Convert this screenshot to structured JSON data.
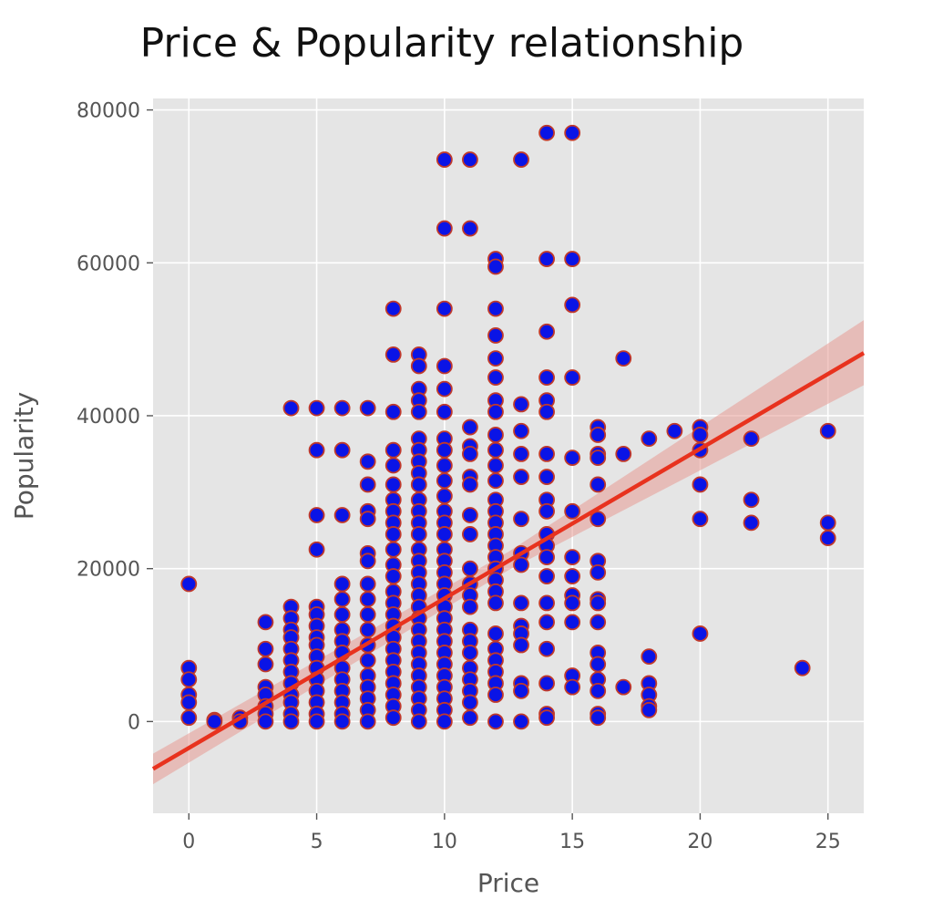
{
  "chart_data": {
    "type": "scatter",
    "title": "Price & Popularity relationship",
    "xlabel": "Price",
    "ylabel": "Popularity",
    "xlim": [
      -1.4,
      26.4
    ],
    "ylim": [
      -12000,
      81500
    ],
    "xticks": [
      0,
      5,
      10,
      15,
      20,
      25
    ],
    "yticks": [
      0,
      20000,
      40000,
      60000,
      80000
    ],
    "grid": true,
    "colors": {
      "background": "#e5e5e5",
      "grid": "#ffffff",
      "point_fill": "#0a14e6",
      "point_edge": "#c0392b",
      "regression_line": "#e8321e",
      "confidence_band": "#e89a94"
    },
    "regression": {
      "x": [
        -1.4,
        26.4
      ],
      "y": [
        -6200,
        48200
      ],
      "ci_at_end": [
        44000,
        52500
      ],
      "ci_at_start": [
        -8200,
        -4200
      ]
    },
    "points": [
      [
        0,
        18000
      ],
      [
        0,
        7000
      ],
      [
        0,
        5500
      ],
      [
        0,
        3500
      ],
      [
        0,
        2500
      ],
      [
        0,
        500
      ],
      [
        1,
        200
      ],
      [
        1,
        0
      ],
      [
        2,
        500
      ],
      [
        2,
        0
      ],
      [
        3,
        13000
      ],
      [
        3,
        9500
      ],
      [
        3,
        7500
      ],
      [
        3,
        4500
      ],
      [
        3,
        3500
      ],
      [
        3,
        2000
      ],
      [
        3,
        1000
      ],
      [
        3,
        0
      ],
      [
        4,
        41000
      ],
      [
        4,
        15000
      ],
      [
        4,
        13500
      ],
      [
        4,
        12000
      ],
      [
        4,
        11000
      ],
      [
        4,
        9500
      ],
      [
        4,
        8000
      ],
      [
        4,
        6500
      ],
      [
        4,
        5000
      ],
      [
        4,
        3500
      ],
      [
        4,
        2500
      ],
      [
        4,
        1000
      ],
      [
        4,
        0
      ],
      [
        5,
        41000
      ],
      [
        5,
        35500
      ],
      [
        5,
        27000
      ],
      [
        5,
        22500
      ],
      [
        5,
        15000
      ],
      [
        5,
        14000
      ],
      [
        5,
        12500
      ],
      [
        5,
        11000
      ],
      [
        5,
        10000
      ],
      [
        5,
        8500
      ],
      [
        5,
        7000
      ],
      [
        5,
        5500
      ],
      [
        5,
        4000
      ],
      [
        5,
        2500
      ],
      [
        5,
        1000
      ],
      [
        5,
        0
      ],
      [
        6,
        41000
      ],
      [
        6,
        35500
      ],
      [
        6,
        27000
      ],
      [
        6,
        18000
      ],
      [
        6,
        16000
      ],
      [
        6,
        14000
      ],
      [
        6,
        12000
      ],
      [
        6,
        10500
      ],
      [
        6,
        9000
      ],
      [
        6,
        7000
      ],
      [
        6,
        5500
      ],
      [
        6,
        4000
      ],
      [
        6,
        2500
      ],
      [
        6,
        1000
      ],
      [
        6,
        0
      ],
      [
        7,
        41000
      ],
      [
        7,
        34000
      ],
      [
        7,
        31000
      ],
      [
        7,
        27500
      ],
      [
        7,
        26500
      ],
      [
        7,
        22000
      ],
      [
        7,
        21000
      ],
      [
        7,
        18000
      ],
      [
        7,
        16000
      ],
      [
        7,
        14000
      ],
      [
        7,
        12000
      ],
      [
        7,
        10000
      ],
      [
        7,
        8000
      ],
      [
        7,
        6000
      ],
      [
        7,
        4500
      ],
      [
        7,
        3000
      ],
      [
        7,
        1500
      ],
      [
        7,
        0
      ],
      [
        8,
        54000
      ],
      [
        8,
        48000
      ],
      [
        8,
        40500
      ],
      [
        8,
        35500
      ],
      [
        8,
        33500
      ],
      [
        8,
        31000
      ],
      [
        8,
        29000
      ],
      [
        8,
        27500
      ],
      [
        8,
        26000
      ],
      [
        8,
        24500
      ],
      [
        8,
        22500
      ],
      [
        8,
        20500
      ],
      [
        8,
        19000
      ],
      [
        8,
        17000
      ],
      [
        8,
        15500
      ],
      [
        8,
        14000
      ],
      [
        8,
        12500
      ],
      [
        8,
        11000
      ],
      [
        8,
        9500
      ],
      [
        8,
        8000
      ],
      [
        8,
        6500
      ],
      [
        8,
        5000
      ],
      [
        8,
        3500
      ],
      [
        8,
        2000
      ],
      [
        8,
        500
      ],
      [
        9,
        48000
      ],
      [
        9,
        46500
      ],
      [
        9,
        43500
      ],
      [
        9,
        42000
      ],
      [
        9,
        40500
      ],
      [
        9,
        37000
      ],
      [
        9,
        35500
      ],
      [
        9,
        34000
      ],
      [
        9,
        32500
      ],
      [
        9,
        31000
      ],
      [
        9,
        29000
      ],
      [
        9,
        27500
      ],
      [
        9,
        26000
      ],
      [
        9,
        24500
      ],
      [
        9,
        22500
      ],
      [
        9,
        21000
      ],
      [
        9,
        19500
      ],
      [
        9,
        18000
      ],
      [
        9,
        16500
      ],
      [
        9,
        15000
      ],
      [
        9,
        13500
      ],
      [
        9,
        12000
      ],
      [
        9,
        10500
      ],
      [
        9,
        9000
      ],
      [
        9,
        7500
      ],
      [
        9,
        6000
      ],
      [
        9,
        4500
      ],
      [
        9,
        3000
      ],
      [
        9,
        1500
      ],
      [
        9,
        0
      ],
      [
        10,
        73500
      ],
      [
        10,
        64500
      ],
      [
        10,
        54000
      ],
      [
        10,
        46500
      ],
      [
        10,
        43500
      ],
      [
        10,
        40500
      ],
      [
        10,
        37000
      ],
      [
        10,
        35500
      ],
      [
        10,
        33500
      ],
      [
        10,
        31500
      ],
      [
        10,
        29500
      ],
      [
        10,
        27500
      ],
      [
        10,
        26000
      ],
      [
        10,
        24500
      ],
      [
        10,
        22500
      ],
      [
        10,
        21000
      ],
      [
        10,
        19500
      ],
      [
        10,
        18000
      ],
      [
        10,
        16500
      ],
      [
        10,
        15000
      ],
      [
        10,
        13500
      ],
      [
        10,
        12000
      ],
      [
        10,
        10500
      ],
      [
        10,
        9000
      ],
      [
        10,
        7500
      ],
      [
        10,
        6000
      ],
      [
        10,
        4500
      ],
      [
        10,
        3000
      ],
      [
        10,
        1500
      ],
      [
        10,
        0
      ],
      [
        11,
        73500
      ],
      [
        11,
        64500
      ],
      [
        11,
        38500
      ],
      [
        11,
        36000
      ],
      [
        11,
        35000
      ],
      [
        11,
        32000
      ],
      [
        11,
        31000
      ],
      [
        11,
        27000
      ],
      [
        11,
        24500
      ],
      [
        11,
        20000
      ],
      [
        11,
        18000
      ],
      [
        11,
        16500
      ],
      [
        11,
        15000
      ],
      [
        11,
        12000
      ],
      [
        11,
        10500
      ],
      [
        11,
        9000
      ],
      [
        11,
        7000
      ],
      [
        11,
        5500
      ],
      [
        11,
        4000
      ],
      [
        11,
        2500
      ],
      [
        11,
        500
      ],
      [
        12,
        60500
      ],
      [
        12,
        59500
      ],
      [
        12,
        54000
      ],
      [
        12,
        50500
      ],
      [
        12,
        47500
      ],
      [
        12,
        45000
      ],
      [
        12,
        42000
      ],
      [
        12,
        40500
      ],
      [
        12,
        37500
      ],
      [
        12,
        35500
      ],
      [
        12,
        33500
      ],
      [
        12,
        31500
      ],
      [
        12,
        29000
      ],
      [
        12,
        27500
      ],
      [
        12,
        26000
      ],
      [
        12,
        24500
      ],
      [
        12,
        23000
      ],
      [
        12,
        21500
      ],
      [
        12,
        20000
      ],
      [
        12,
        18500
      ],
      [
        12,
        17000
      ],
      [
        12,
        15500
      ],
      [
        12,
        11500
      ],
      [
        12,
        9500
      ],
      [
        12,
        8000
      ],
      [
        12,
        6500
      ],
      [
        12,
        5000
      ],
      [
        12,
        3500
      ],
      [
        12,
        0
      ],
      [
        13,
        73500
      ],
      [
        13,
        41500
      ],
      [
        13,
        38000
      ],
      [
        13,
        35000
      ],
      [
        13,
        32000
      ],
      [
        13,
        26500
      ],
      [
        13,
        22000
      ],
      [
        13,
        20500
      ],
      [
        13,
        15500
      ],
      [
        13,
        12500
      ],
      [
        13,
        11500
      ],
      [
        13,
        10000
      ],
      [
        13,
        5000
      ],
      [
        13,
        4000
      ],
      [
        13,
        0
      ],
      [
        14,
        77000
      ],
      [
        14,
        60500
      ],
      [
        14,
        51000
      ],
      [
        14,
        45000
      ],
      [
        14,
        42000
      ],
      [
        14,
        40500
      ],
      [
        14,
        35000
      ],
      [
        14,
        32000
      ],
      [
        14,
        29000
      ],
      [
        14,
        27500
      ],
      [
        14,
        24500
      ],
      [
        14,
        23000
      ],
      [
        14,
        21500
      ],
      [
        14,
        19000
      ],
      [
        14,
        15500
      ],
      [
        14,
        13000
      ],
      [
        14,
        9500
      ],
      [
        14,
        5000
      ],
      [
        14,
        1000
      ],
      [
        14,
        500
      ],
      [
        15,
        77000
      ],
      [
        15,
        60500
      ],
      [
        15,
        54500
      ],
      [
        15,
        45000
      ],
      [
        15,
        34500
      ],
      [
        15,
        27500
      ],
      [
        15,
        21500
      ],
      [
        15,
        19000
      ],
      [
        15,
        16500
      ],
      [
        15,
        15500
      ],
      [
        15,
        13000
      ],
      [
        15,
        6000
      ],
      [
        15,
        4500
      ],
      [
        16,
        38500
      ],
      [
        16,
        37500
      ],
      [
        16,
        35000
      ],
      [
        16,
        34500
      ],
      [
        16,
        31000
      ],
      [
        16,
        26500
      ],
      [
        16,
        21000
      ],
      [
        16,
        19500
      ],
      [
        16,
        16000
      ],
      [
        16,
        15500
      ],
      [
        16,
        13000
      ],
      [
        16,
        9000
      ],
      [
        16,
        7500
      ],
      [
        16,
        5500
      ],
      [
        16,
        4000
      ],
      [
        16,
        1000
      ],
      [
        16,
        500
      ],
      [
        17,
        47500
      ],
      [
        17,
        35000
      ],
      [
        17,
        4500
      ],
      [
        18,
        37000
      ],
      [
        18,
        8500
      ],
      [
        18,
        5000
      ],
      [
        18,
        3500
      ],
      [
        18,
        2000
      ],
      [
        18,
        1500
      ],
      [
        19,
        38000
      ],
      [
        20,
        38500
      ],
      [
        20,
        37500
      ],
      [
        20,
        35500
      ],
      [
        20,
        31000
      ],
      [
        20,
        26500
      ],
      [
        20,
        11500
      ],
      [
        22,
        37000
      ],
      [
        22,
        29000
      ],
      [
        22,
        26000
      ],
      [
        24,
        7000
      ],
      [
        25,
        38000
      ],
      [
        25,
        26000
      ],
      [
        25,
        24000
      ]
    ]
  }
}
